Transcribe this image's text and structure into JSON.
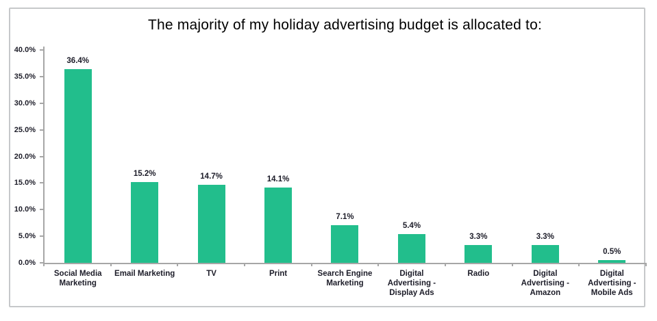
{
  "chart_data": {
    "type": "bar",
    "title": "The majority of my holiday advertising budget is allocated to:",
    "categories": [
      "Social Media\nMarketing",
      "Email Marketing",
      "TV",
      "Print",
      "Search Engine\nMarketing",
      "Digital\nAdvertising -\nDisplay Ads",
      "Radio",
      "Digital\nAdvertising -\nAmazon",
      "Digital\nAdvertising -\nMobile Ads"
    ],
    "values": [
      36.4,
      15.2,
      14.7,
      14.1,
      7.1,
      5.4,
      3.3,
      3.3,
      0.5
    ],
    "value_labels": [
      "36.4%",
      "15.2%",
      "14.7%",
      "14.1%",
      "7.1%",
      "5.4%",
      "3.3%",
      "3.3%",
      "0.5%"
    ],
    "xlabel": "",
    "ylabel": "",
    "ylim": [
      0,
      40
    ],
    "y_tick_labels": [
      "0.0%",
      "5.0%",
      "10.0%",
      "15.0%",
      "20.0%",
      "25.0%",
      "30.0%",
      "35.0%",
      "40.0%"
    ],
    "grid": false,
    "legend": "none",
    "bar_color": "#22be8c",
    "axis_color": "#a6a6a6",
    "label_color": "#1c1c28",
    "title_color": "#000000",
    "frame_border_color": "#c6c8ca"
  }
}
